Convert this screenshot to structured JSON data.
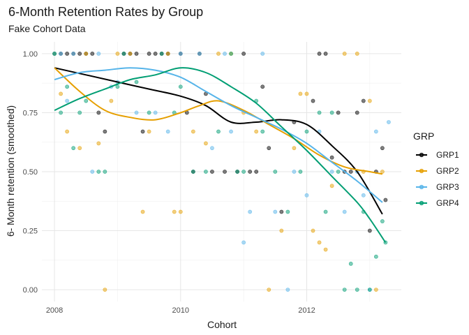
{
  "chart_data": {
    "type": "scatter",
    "title": "6-Month Retention Rates by Group",
    "subtitle": "Fake Cohort Data",
    "xlabel": "Cohort",
    "ylabel": "6- Month retention (smoothed)",
    "xlim": [
      2007.8,
      2013.5
    ],
    "ylim": [
      -0.05,
      1.05
    ],
    "x_ticks": [
      2008,
      2010,
      2012
    ],
    "x_tick_labels": [
      "2008",
      "2010",
      "2012"
    ],
    "y_ticks": [
      0,
      0.25,
      0.5,
      0.75,
      1
    ],
    "y_tick_labels": [
      "0.00",
      "0.25",
      "0.50",
      "0.75",
      "1.00"
    ],
    "grid": true,
    "legend": {
      "title": "GRP",
      "position": "right"
    },
    "series": [
      {
        "name": "GRP1",
        "color": "#000000",
        "smooth": [
          [
            2008.0,
            0.94
          ],
          [
            2008.5,
            0.91
          ],
          [
            2009.0,
            0.88
          ],
          [
            2009.5,
            0.85
          ],
          [
            2010.0,
            0.82
          ],
          [
            2010.4,
            0.78
          ],
          [
            2010.8,
            0.71
          ],
          [
            2011.2,
            0.71
          ],
          [
            2011.6,
            0.72
          ],
          [
            2012.0,
            0.7
          ],
          [
            2012.4,
            0.61
          ],
          [
            2012.8,
            0.5
          ],
          [
            2013.2,
            0.32
          ]
        ],
        "points": [
          [
            2008.0,
            1.0
          ],
          [
            2008.1,
            1.0
          ],
          [
            2008.2,
            1.0
          ],
          [
            2008.3,
            1.0
          ],
          [
            2008.4,
            1.0
          ],
          [
            2008.5,
            1.0
          ],
          [
            2008.6,
            1.0
          ],
          [
            2008.7,
            0.75
          ],
          [
            2008.8,
            0.67
          ],
          [
            2009.1,
            1.0
          ],
          [
            2009.2,
            1.0
          ],
          [
            2009.3,
            1.0
          ],
          [
            2009.4,
            0.67
          ],
          [
            2009.5,
            1.0
          ],
          [
            2009.6,
            1.0
          ],
          [
            2009.7,
            1.0
          ],
          [
            2009.8,
            1.0
          ],
          [
            2010.0,
            1.0
          ],
          [
            2010.1,
            0.75
          ],
          [
            2010.2,
            0.5
          ],
          [
            2010.3,
            1.0
          ],
          [
            2010.4,
            0.83
          ],
          [
            2010.5,
            0.5
          ],
          [
            2010.7,
            0.5
          ],
          [
            2010.9,
            0.5
          ],
          [
            2011.0,
            1.0
          ],
          [
            2011.1,
            0.5
          ],
          [
            2011.2,
            0.5
          ],
          [
            2011.3,
            0.86
          ],
          [
            2011.4,
            0.6
          ],
          [
            2011.6,
            0.33
          ],
          [
            2011.8,
            0.71
          ],
          [
            2012.1,
            0.8
          ],
          [
            2012.2,
            1.0
          ],
          [
            2012.3,
            1.0
          ],
          [
            2012.4,
            0.56
          ],
          [
            2012.5,
            0.75
          ],
          [
            2012.6,
            0.5
          ],
          [
            2012.7,
            0.5
          ],
          [
            2012.8,
            0.75
          ],
          [
            2012.9,
            0.8
          ],
          [
            2013.0,
            0.25
          ],
          [
            2013.1,
            0.5
          ],
          [
            2013.2,
            0.6
          ],
          [
            2013.25,
            0.38
          ]
        ]
      },
      {
        "name": "GRP2",
        "color": "#E69F00",
        "smooth": [
          [
            2008.0,
            0.94
          ],
          [
            2008.4,
            0.84
          ],
          [
            2008.8,
            0.76
          ],
          [
            2009.2,
            0.73
          ],
          [
            2009.6,
            0.72
          ],
          [
            2010.0,
            0.75
          ],
          [
            2010.3,
            0.78
          ],
          [
            2010.6,
            0.8
          ],
          [
            2011.0,
            0.76
          ],
          [
            2011.4,
            0.7
          ],
          [
            2011.8,
            0.64
          ],
          [
            2012.2,
            0.57
          ],
          [
            2012.6,
            0.52
          ],
          [
            2013.0,
            0.5
          ],
          [
            2013.2,
            0.49
          ]
        ],
        "points": [
          [
            2008.0,
            1.0
          ],
          [
            2008.1,
            0.83
          ],
          [
            2008.2,
            0.67
          ],
          [
            2008.4,
            0.6
          ],
          [
            2008.5,
            1.0
          ],
          [
            2008.7,
            0.62
          ],
          [
            2008.8,
            0.0
          ],
          [
            2008.9,
            0.8
          ],
          [
            2009.0,
            1.0
          ],
          [
            2009.2,
            1.0
          ],
          [
            2009.4,
            0.33
          ],
          [
            2009.5,
            0.67
          ],
          [
            2009.8,
            1.0
          ],
          [
            2009.9,
            0.33
          ],
          [
            2010.0,
            0.33
          ],
          [
            2010.2,
            0.67
          ],
          [
            2010.4,
            0.62
          ],
          [
            2010.6,
            1.0
          ],
          [
            2010.8,
            1.0
          ],
          [
            2011.0,
            0.75
          ],
          [
            2011.2,
            0.67
          ],
          [
            2011.4,
            0.0
          ],
          [
            2011.6,
            0.25
          ],
          [
            2011.8,
            0.6
          ],
          [
            2011.9,
            0.83
          ],
          [
            2012.0,
            0.83
          ],
          [
            2012.1,
            0.25
          ],
          [
            2012.2,
            0.2
          ],
          [
            2012.3,
            0.17
          ],
          [
            2012.4,
            0.44
          ],
          [
            2012.6,
            1.0
          ],
          [
            2012.8,
            1.0
          ],
          [
            2012.9,
            0.5
          ],
          [
            2013.0,
            0.8
          ],
          [
            2013.1,
            0.0
          ],
          [
            2013.2,
            0.5
          ]
        ]
      },
      {
        "name": "GRP3",
        "color": "#56B4E9",
        "smooth": [
          [
            2008.0,
            0.89
          ],
          [
            2008.4,
            0.92
          ],
          [
            2008.8,
            0.93
          ],
          [
            2009.2,
            0.94
          ],
          [
            2009.6,
            0.93
          ],
          [
            2010.0,
            0.9
          ],
          [
            2010.4,
            0.84
          ],
          [
            2010.8,
            0.78
          ],
          [
            2011.2,
            0.73
          ],
          [
            2011.6,
            0.68
          ],
          [
            2012.0,
            0.62
          ],
          [
            2012.4,
            0.54
          ],
          [
            2012.8,
            0.46
          ],
          [
            2013.2,
            0.37
          ]
        ],
        "points": [
          [
            2008.0,
            1.0
          ],
          [
            2008.1,
            1.0
          ],
          [
            2008.2,
            0.8
          ],
          [
            2008.3,
            1.0
          ],
          [
            2008.6,
            0.5
          ],
          [
            2008.7,
            1.0
          ],
          [
            2008.9,
            0.86
          ],
          [
            2009.0,
            0.88
          ],
          [
            2009.3,
            0.75
          ],
          [
            2009.6,
            0.75
          ],
          [
            2009.8,
            0.67
          ],
          [
            2010.0,
            1.0
          ],
          [
            2010.3,
            1.0
          ],
          [
            2010.5,
            0.6
          ],
          [
            2010.7,
            1.0
          ],
          [
            2010.8,
            0.67
          ],
          [
            2011.0,
            0.2
          ],
          [
            2011.1,
            0.33
          ],
          [
            2011.3,
            1.0
          ],
          [
            2011.5,
            0.33
          ],
          [
            2011.7,
            0.0
          ],
          [
            2011.8,
            0.5
          ],
          [
            2012.0,
            0.4
          ],
          [
            2012.2,
            0.67
          ],
          [
            2012.4,
            0.5
          ],
          [
            2012.6,
            0.33
          ],
          [
            2012.8,
            0.5
          ],
          [
            2012.9,
            0.4
          ],
          [
            2013.0,
            0.0
          ],
          [
            2013.1,
            0.67
          ],
          [
            2013.3,
            0.71
          ]
        ]
      },
      {
        "name": "GRP4",
        "color": "#009E73",
        "smooth": [
          [
            2008.0,
            0.76
          ],
          [
            2008.4,
            0.81
          ],
          [
            2008.8,
            0.85
          ],
          [
            2009.2,
            0.89
          ],
          [
            2009.6,
            0.91
          ],
          [
            2010.0,
            0.94
          ],
          [
            2010.4,
            0.92
          ],
          [
            2010.8,
            0.86
          ],
          [
            2011.2,
            0.79
          ],
          [
            2011.6,
            0.69
          ],
          [
            2012.0,
            0.59
          ],
          [
            2012.4,
            0.48
          ],
          [
            2012.8,
            0.37
          ],
          [
            2013.0,
            0.3
          ],
          [
            2013.25,
            0.2
          ]
        ],
        "points": [
          [
            2008.0,
            1.0
          ],
          [
            2008.1,
            0.75
          ],
          [
            2008.2,
            0.86
          ],
          [
            2008.3,
            0.6
          ],
          [
            2008.4,
            0.75
          ],
          [
            2008.5,
            0.8
          ],
          [
            2008.7,
            0.5
          ],
          [
            2008.8,
            0.5
          ],
          [
            2009.0,
            0.86
          ],
          [
            2009.1,
            1.0
          ],
          [
            2009.3,
            0.88
          ],
          [
            2009.5,
            0.75
          ],
          [
            2009.7,
            1.0
          ],
          [
            2009.9,
            0.75
          ],
          [
            2010.0,
            0.86
          ],
          [
            2010.2,
            0.5
          ],
          [
            2010.4,
            0.5
          ],
          [
            2010.6,
            0.67
          ],
          [
            2010.8,
            1.0
          ],
          [
            2010.9,
            0.5
          ],
          [
            2011.0,
            0.5
          ],
          [
            2011.2,
            0.8
          ],
          [
            2011.3,
            0.67
          ],
          [
            2011.5,
            0.5
          ],
          [
            2011.7,
            0.33
          ],
          [
            2011.9,
            0.5
          ],
          [
            2012.0,
            0.67
          ],
          [
            2012.2,
            0.75
          ],
          [
            2012.3,
            0.33
          ],
          [
            2012.4,
            0.75
          ],
          [
            2012.5,
            0.5
          ],
          [
            2012.6,
            0.0
          ],
          [
            2012.7,
            0.11
          ],
          [
            2012.8,
            0.0
          ],
          [
            2012.9,
            0.33
          ],
          [
            2013.0,
            0.0
          ],
          [
            2013.1,
            0.14
          ],
          [
            2013.2,
            0.29
          ],
          [
            2013.25,
            0.2
          ]
        ]
      }
    ]
  }
}
